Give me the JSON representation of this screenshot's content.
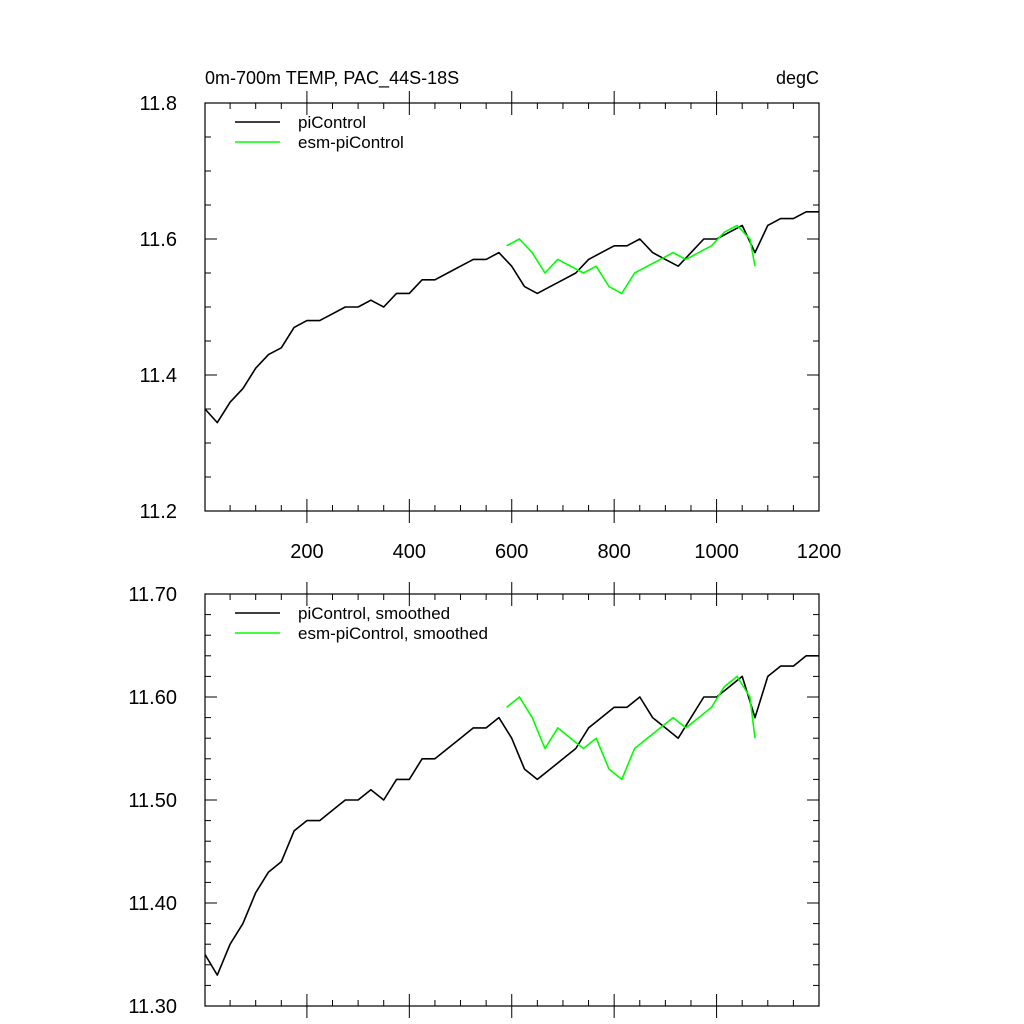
{
  "chart_data": [
    {
      "type": "line",
      "title": "0m-700m TEMP, PAC_44S-18S",
      "units": "degC",
      "xlim": [
        1,
        1200
      ],
      "ylim": [
        11.2,
        11.8
      ],
      "xticks": [
        200,
        400,
        600,
        800,
        1000,
        1200
      ],
      "xtick_labels": [
        "200",
        "400",
        "600",
        "800",
        "1000",
        "1200"
      ],
      "yticks": [
        11.2,
        11.4,
        11.6,
        11.8
      ],
      "ytick_labels": [
        "11.2",
        "11.4",
        "11.6",
        "11.8"
      ],
      "legend_position": "top-left",
      "series": [
        {
          "name": "piControl",
          "color": "#000000",
          "x": [
            1,
            25,
            50,
            75,
            100,
            125,
            150,
            175,
            200,
            225,
            250,
            275,
            300,
            325,
            350,
            375,
            400,
            425,
            450,
            475,
            500,
            525,
            550,
            575,
            600,
            625,
            650,
            675,
            700,
            725,
            750,
            775,
            800,
            825,
            850,
            875,
            900,
            925,
            950,
            975,
            1000,
            1025,
            1050,
            1075,
            1100,
            1125,
            1150,
            1175,
            1200
          ],
          "y": [
            11.35,
            11.33,
            11.36,
            11.38,
            11.41,
            11.43,
            11.44,
            11.47,
            11.48,
            11.48,
            11.49,
            11.5,
            11.5,
            11.51,
            11.5,
            11.52,
            11.52,
            11.54,
            11.54,
            11.55,
            11.56,
            11.57,
            11.57,
            11.58,
            11.56,
            11.53,
            11.52,
            11.53,
            11.54,
            11.55,
            11.57,
            11.58,
            11.59,
            11.59,
            11.6,
            11.58,
            11.57,
            11.56,
            11.58,
            11.6,
            11.6,
            11.61,
            11.62,
            11.58,
            11.62,
            11.63,
            11.63,
            11.64,
            11.64
          ]
        },
        {
          "name": "esm-piControl",
          "color": "#00ff00",
          "x": [
            590,
            615,
            640,
            665,
            690,
            715,
            740,
            765,
            790,
            815,
            840,
            865,
            890,
            915,
            940,
            965,
            990,
            1015,
            1040,
            1065,
            1075
          ],
          "y": [
            11.59,
            11.6,
            11.58,
            11.55,
            11.57,
            11.56,
            11.55,
            11.56,
            11.53,
            11.52,
            11.55,
            11.56,
            11.57,
            11.58,
            11.57,
            11.58,
            11.59,
            11.61,
            11.62,
            11.6,
            11.56
          ]
        }
      ]
    },
    {
      "type": "line",
      "title": "",
      "xlim": [
        1,
        1200
      ],
      "ylim": [
        11.3,
        11.7
      ],
      "xticks": [
        200,
        400,
        600,
        800,
        1000,
        1200
      ],
      "yticks": [
        11.3,
        11.4,
        11.5,
        11.6,
        11.7
      ],
      "ytick_labels": [
        "11.30",
        "11.40",
        "11.50",
        "11.60",
        "11.70"
      ],
      "legend_position": "top-left",
      "series": [
        {
          "name": "piControl, smoothed",
          "color": "#000000",
          "x": [
            1,
            25,
            50,
            75,
            100,
            125,
            150,
            175,
            200,
            225,
            250,
            275,
            300,
            325,
            350,
            375,
            400,
            425,
            450,
            475,
            500,
            525,
            550,
            575,
            600,
            625,
            650,
            675,
            700,
            725,
            750,
            775,
            800,
            825,
            850,
            875,
            900,
            925,
            950,
            975,
            1000,
            1025,
            1050,
            1075,
            1100,
            1125,
            1150,
            1175,
            1200
          ],
          "y": [
            11.35,
            11.33,
            11.36,
            11.38,
            11.41,
            11.43,
            11.44,
            11.47,
            11.48,
            11.48,
            11.49,
            11.5,
            11.5,
            11.51,
            11.5,
            11.52,
            11.52,
            11.54,
            11.54,
            11.55,
            11.56,
            11.57,
            11.57,
            11.58,
            11.56,
            11.53,
            11.52,
            11.53,
            11.54,
            11.55,
            11.57,
            11.58,
            11.59,
            11.59,
            11.6,
            11.58,
            11.57,
            11.56,
            11.58,
            11.6,
            11.6,
            11.61,
            11.62,
            11.58,
            11.62,
            11.63,
            11.63,
            11.64,
            11.64
          ]
        },
        {
          "name": "esm-piControl, smoothed",
          "color": "#00ff00",
          "x": [
            590,
            615,
            640,
            665,
            690,
            715,
            740,
            765,
            790,
            815,
            840,
            865,
            890,
            915,
            940,
            965,
            990,
            1015,
            1040,
            1065,
            1075
          ],
          "y": [
            11.59,
            11.6,
            11.58,
            11.55,
            11.57,
            11.56,
            11.55,
            11.56,
            11.53,
            11.52,
            11.55,
            11.56,
            11.57,
            11.58,
            11.57,
            11.58,
            11.59,
            11.61,
            11.62,
            11.6,
            11.56
          ]
        }
      ]
    }
  ]
}
